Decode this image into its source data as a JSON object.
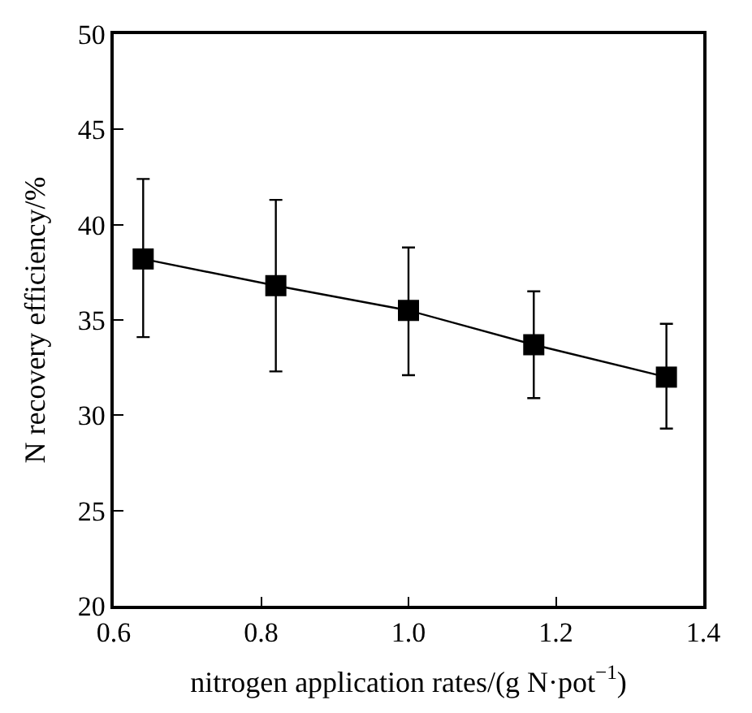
{
  "chart_data": {
    "type": "line",
    "xlabel": "nitrogen application rates/(g N·pot$^{−1}$)",
    "ylabel": "N recovery efficiency/%",
    "x": [
      0.64,
      0.82,
      1.0,
      1.17,
      1.35
    ],
    "series": [
      {
        "color": "#000000",
        "values": [
          38.2,
          36.8,
          35.5,
          33.7,
          32.0
        ],
        "errors": [
          [
            34.1,
            42.4
          ],
          [
            32.3,
            41.3
          ],
          [
            32.1,
            38.8
          ],
          [
            30.9,
            36.5
          ],
          [
            29.3,
            34.8
          ]
        ]
      }
    ],
    "xlim": [
      0.6,
      1.4
    ],
    "xticks": [
      0.6,
      0.8,
      {
        "value": 1,
        "label": "1.0"
      },
      1.2,
      1.4
    ],
    "ylim": [
      20,
      50
    ],
    "yticks": [
      20,
      25,
      30,
      35,
      40,
      45,
      50
    ],
    "grid": false,
    "legend": false,
    "marker": "square",
    "line_style": "solid"
  }
}
